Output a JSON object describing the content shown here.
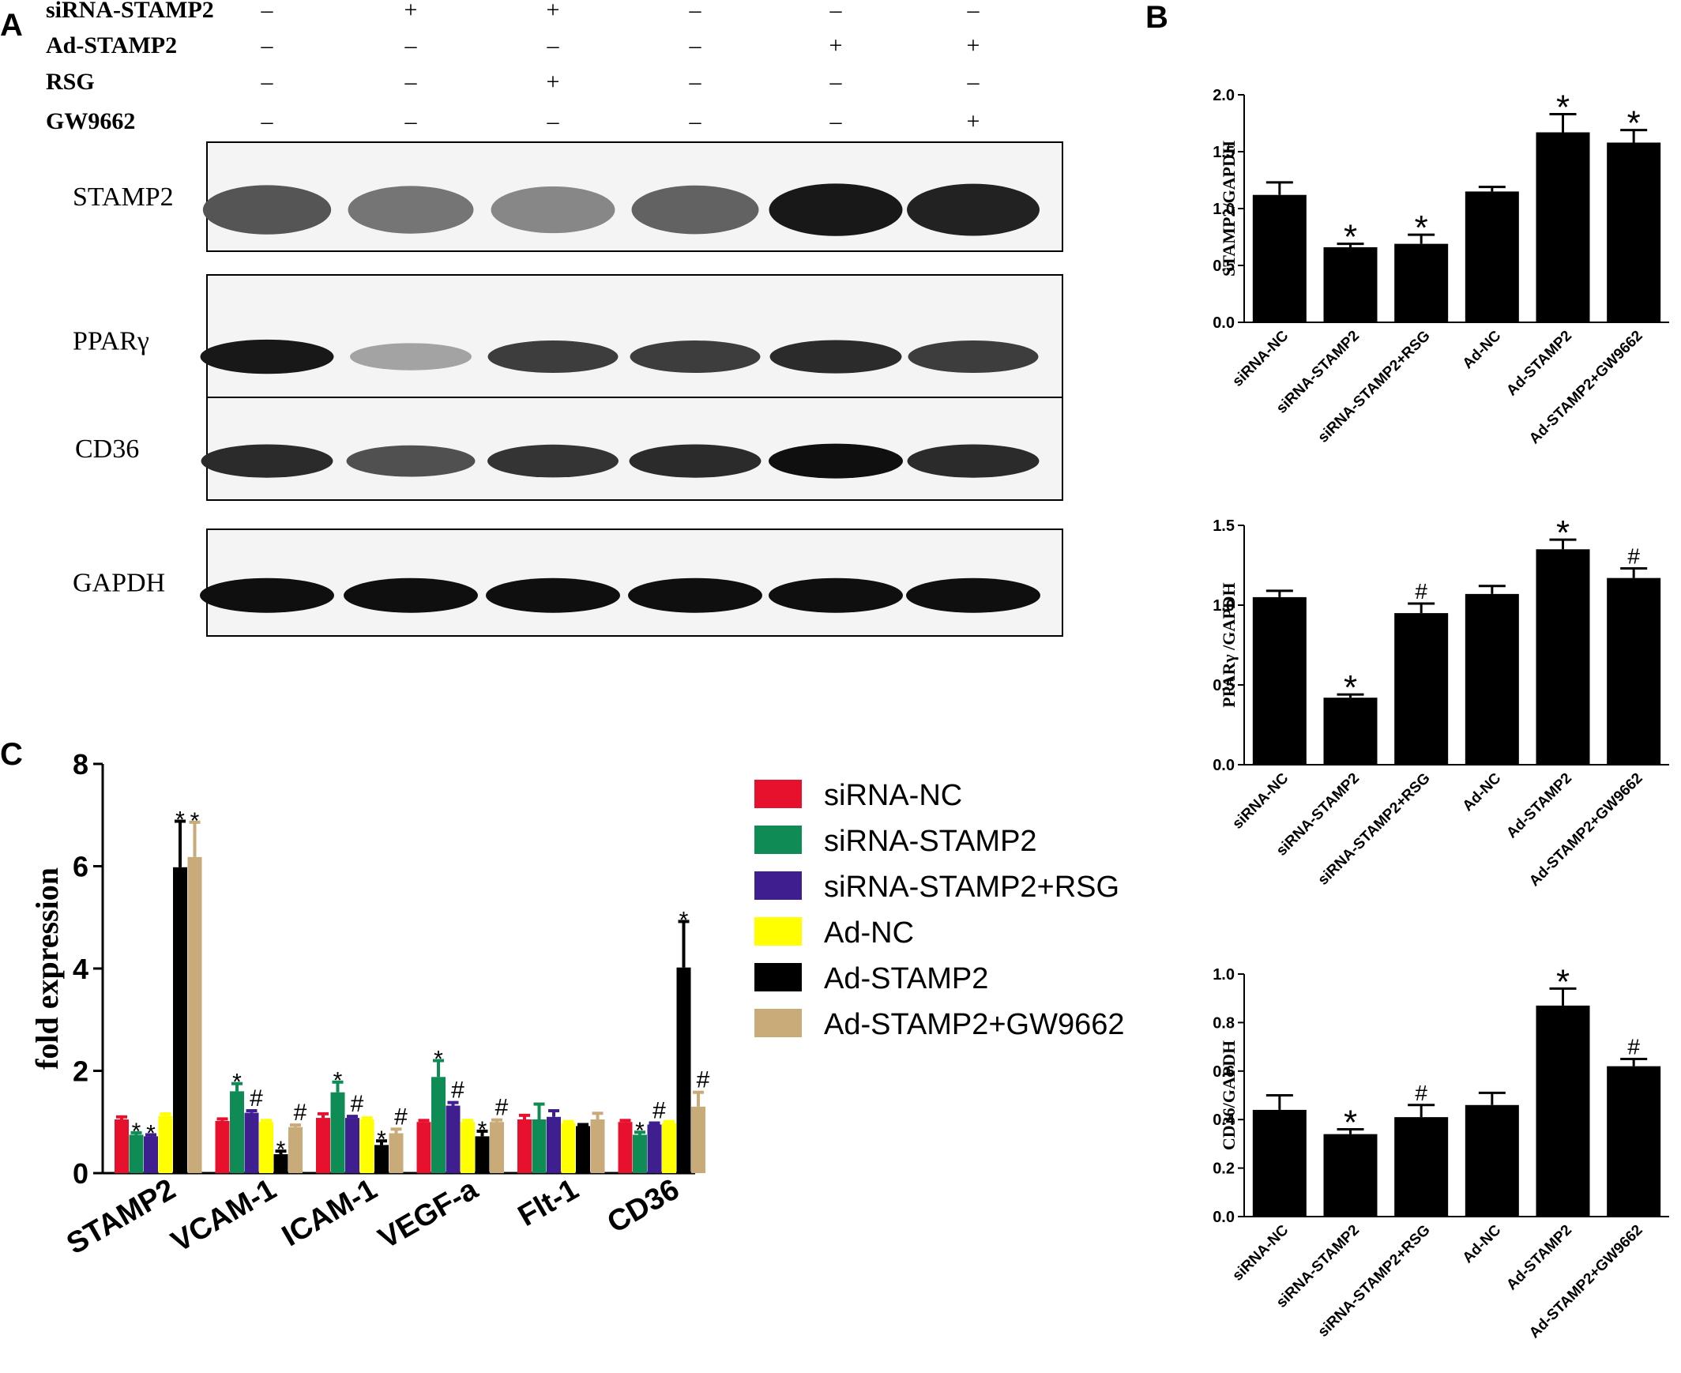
{
  "panel_letters": [
    "A",
    "B",
    "C"
  ],
  "western_blot": {
    "treatments": [
      {
        "name": "siRNA-STAMP2",
        "signs": [
          "–",
          "+",
          "+",
          "–",
          "–",
          "–"
        ]
      },
      {
        "name": "Ad-STAMP2",
        "signs": [
          "–",
          "–",
          "–",
          "–",
          "+",
          "+"
        ]
      },
      {
        "name": "RSG",
        "signs": [
          "–",
          "–",
          "+",
          "–",
          "–",
          "–"
        ]
      },
      {
        "name": "GW9662",
        "signs": [
          "–",
          "–",
          "–",
          "–",
          "–",
          "+"
        ]
      }
    ],
    "blots": [
      {
        "label": "STAMP2",
        "intensities": [
          0.62,
          0.45,
          0.35,
          0.55,
          0.95,
          0.9
        ]
      },
      {
        "label": "PPARγ",
        "intensities": [
          0.95,
          0.2,
          0.75,
          0.75,
          0.85,
          0.75
        ]
      },
      {
        "label": "CD36",
        "intensities": [
          0.85,
          0.65,
          0.8,
          0.85,
          1.0,
          0.85
        ]
      },
      {
        "label": "GAPDH",
        "intensities": [
          1.0,
          1.0,
          1.0,
          1.0,
          1.0,
          1.0
        ]
      }
    ]
  },
  "chart_data": [
    {
      "type": "bar",
      "panel": "B",
      "categories": [
        "siRNA-NC",
        "siRNA-STAMP2",
        "siRNA-STAMP2+RSG",
        "Ad-NC",
        "Ad-STAMP2",
        "Ad-STAMP2+GW9662"
      ],
      "values": [
        1.12,
        0.66,
        0.69,
        1.15,
        1.67,
        1.58
      ],
      "errors": [
        0.11,
        0.03,
        0.08,
        0.04,
        0.16,
        0.11
      ],
      "annotations": [
        "",
        "*",
        "*",
        "",
        "*",
        "*"
      ],
      "ylabel": "STAMP2/GAPDH",
      "ylim": [
        0,
        2.0
      ],
      "yticks": [
        "0.0",
        "0.5",
        "1.0",
        "1.5",
        "2.0"
      ],
      "color": "#000000"
    },
    {
      "type": "bar",
      "panel": "B",
      "categories": [
        "siRNA-NC",
        "siRNA-STAMP2",
        "siRNA-STAMP2+RSG",
        "Ad-NC",
        "Ad-STAMP2",
        "Ad-STAMP2+GW9662"
      ],
      "values": [
        1.05,
        0.42,
        0.95,
        1.07,
        1.35,
        1.17
      ],
      "errors": [
        0.04,
        0.02,
        0.06,
        0.05,
        0.06,
        0.06
      ],
      "annotations": [
        "",
        "*",
        "#",
        "",
        "*",
        "#"
      ],
      "ylabel": "PPARγ /GAPDH",
      "ylim": [
        0,
        1.5
      ],
      "yticks": [
        "0.0",
        "0.5",
        "1.0",
        "1.5"
      ],
      "color": "#000000"
    },
    {
      "type": "bar",
      "panel": "B",
      "categories": [
        "siRNA-NC",
        "siRNA-STAMP2",
        "siRNA-STAMP2+RSG",
        "Ad-NC",
        "Ad-STAMP2",
        "Ad-STAMP2+GW9662"
      ],
      "values": [
        0.44,
        0.34,
        0.41,
        0.46,
        0.87,
        0.62
      ],
      "errors": [
        0.06,
        0.02,
        0.05,
        0.05,
        0.07,
        0.03
      ],
      "annotations": [
        "",
        "*",
        "#",
        "",
        "*",
        "#"
      ],
      "ylabel": "CD36/GAPDH",
      "ylim": [
        0,
        1.0
      ],
      "yticks": [
        "0.0",
        "0.2",
        "0.4",
        "0.6",
        "0.8",
        "1.0"
      ],
      "color": "#000000"
    },
    {
      "type": "bar",
      "panel": "C",
      "categories": [
        "STAMP2",
        "VCAM-1",
        "ICAM-1",
        "VEGF-a",
        "Flt-1",
        "CD36"
      ],
      "ylabel": "fold expression",
      "ylim": [
        0,
        8
      ],
      "yticks": [
        "0",
        "2",
        "4",
        "6",
        "8"
      ],
      "legend_position": "right",
      "series": [
        {
          "name": "siRNA-NC",
          "color": "#e8112d",
          "values": [
            1.05,
            1.02,
            1.08,
            1.0,
            1.05,
            1.0
          ],
          "errors": [
            0.05,
            0.04,
            0.08,
            0.03,
            0.08,
            0.03
          ],
          "annotations": [
            "",
            "",
            "",
            "",
            "",
            ""
          ]
        },
        {
          "name": "siRNA-STAMP2",
          "color": "#0f8b55",
          "values": [
            0.75,
            1.6,
            1.58,
            1.88,
            1.05,
            0.75
          ],
          "errors": [
            0.04,
            0.15,
            0.2,
            0.32,
            0.3,
            0.05
          ],
          "annotations": [
            "*",
            "*",
            "*",
            "*",
            "",
            "*"
          ]
        },
        {
          "name": "siRNA-STAMP2+RSG",
          "color": "#3f1f8f",
          "values": [
            0.72,
            1.18,
            1.08,
            1.32,
            1.1,
            0.95
          ],
          "errors": [
            0.03,
            0.04,
            0.03,
            0.06,
            0.12,
            0.03
          ],
          "annotations": [
            "*",
            "#",
            "#",
            "#",
            "",
            "#"
          ]
        },
        {
          "name": "Ad-NC",
          "color": "#ffff00",
          "values": [
            1.12,
            1.0,
            1.05,
            1.0,
            0.98,
            0.98
          ],
          "errors": [
            0.04,
            0.03,
            0.03,
            0.03,
            0.03,
            0.03
          ],
          "annotations": [
            "",
            "",
            "",
            "",
            "",
            ""
          ]
        },
        {
          "name": "Ad-STAMP2",
          "color": "#000000",
          "values": [
            5.98,
            0.37,
            0.55,
            0.72,
            0.92,
            4.02
          ],
          "errors": [
            0.9,
            0.06,
            0.08,
            0.1,
            0.03,
            0.9
          ],
          "annotations": [
            "*",
            "*",
            "*",
            "*",
            "",
            "*"
          ]
        },
        {
          "name": "Ad-STAMP2+GW9662",
          "color": "#c8ab78",
          "values": [
            6.18,
            0.9,
            0.78,
            1.0,
            1.05,
            1.3
          ],
          "errors": [
            0.68,
            0.04,
            0.08,
            0.04,
            0.12,
            0.28
          ],
          "annotations": [
            "*",
            "#",
            "#",
            "#",
            "",
            "#"
          ]
        }
      ]
    }
  ]
}
